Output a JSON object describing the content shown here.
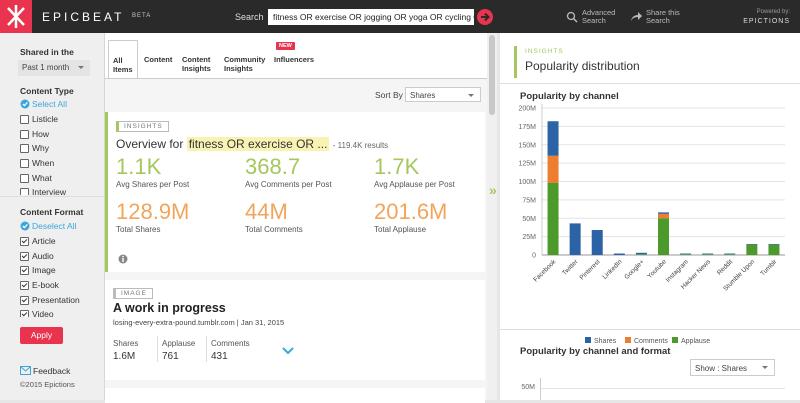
{
  "header": {
    "logo": "EPICBEAT",
    "beta": "BETA",
    "search_label": "Search",
    "search_query": "fitness OR exercise OR jogging OR yoga OR cycling OR w",
    "advanced_search": "Advanced Search",
    "share_search": "Share this Search",
    "powered_by": "Powered by:",
    "powered_brand": "EPICTIONS"
  },
  "sidebar": {
    "shared_in_label": "Shared in the",
    "shared_in_value": "Past 1 month",
    "content_type_label": "Content Type",
    "select_all": "Select All",
    "content_types": [
      {
        "label": "Listicle",
        "checked": false
      },
      {
        "label": "How",
        "checked": false
      },
      {
        "label": "Why",
        "checked": false
      },
      {
        "label": "When",
        "checked": false
      },
      {
        "label": "What",
        "checked": false
      },
      {
        "label": "Interview",
        "checked": false
      }
    ],
    "content_format_label": "Content Format",
    "deselect_all": "Deselect All",
    "content_formats": [
      {
        "label": "Article",
        "checked": true
      },
      {
        "label": "Audio",
        "checked": true
      },
      {
        "label": "Image",
        "checked": true
      },
      {
        "label": "E-book",
        "checked": true
      },
      {
        "label": "Presentation",
        "checked": true
      },
      {
        "label": "Video",
        "checked": true
      }
    ],
    "apply": "Apply",
    "feedback": "Feedback",
    "copyright": "©2015 Epictions"
  },
  "tabs": [
    {
      "label": "All Items",
      "selected": true
    },
    {
      "label": "Content",
      "selected": false
    },
    {
      "label": "Content Insights",
      "selected": false
    },
    {
      "label": "Community Insights",
      "selected": false
    },
    {
      "label": "Influencers",
      "selected": false,
      "badge": "NEW"
    }
  ],
  "sort": {
    "label": "Sort By",
    "value": "Shares"
  },
  "overview": {
    "tag": "INSIGHTS",
    "prefix": "Overview for",
    "query": "fitness OR exercise OR ...",
    "results": "- 119.4K results",
    "stats": [
      {
        "value": "1.1K",
        "label": "Avg Shares per Post"
      },
      {
        "value": "368.7",
        "label": "Avg Comments per Post"
      },
      {
        "value": "1.7K",
        "label": "Avg Applause per Post"
      },
      {
        "value": "128.9M",
        "label": "Total Shares"
      },
      {
        "value": "44M",
        "label": "Total Comments"
      },
      {
        "value": "201.6M",
        "label": "Total Applause"
      }
    ]
  },
  "item": {
    "tag": "IMAGE",
    "title": "A work in progress",
    "source": "losing-every-extra-pound.tumblr.com",
    "date": "Jan 31, 2015",
    "stats": [
      {
        "label": "Shares",
        "value": "1.6M"
      },
      {
        "label": "Applause",
        "value": "761"
      },
      {
        "label": "Comments",
        "value": "431"
      }
    ]
  },
  "distribution": {
    "tag": "INSIGHTS",
    "title": "Popularity distribution"
  },
  "chart_data": {
    "type": "bar",
    "stacked": true,
    "title": "Popularity by channel",
    "categories": [
      "Facebook",
      "Twitter",
      "Pinterest",
      "LinkedIn",
      "Google+",
      "Youtube",
      "Instagram",
      "Hacker News",
      "Reddit",
      "Stumble Upon",
      "Tumblr"
    ],
    "series": [
      {
        "name": "Shares",
        "color": "#2c62a6",
        "values": [
          47,
          43,
          34,
          2,
          2,
          2,
          1,
          1,
          1,
          1,
          1
        ]
      },
      {
        "name": "Comments",
        "color": "#ee7d2f",
        "values": [
          37,
          0,
          0,
          0,
          0,
          6,
          0,
          0,
          0,
          0,
          0
        ]
      },
      {
        "name": "Applause",
        "color": "#4b9a2b",
        "values": [
          98,
          0,
          0,
          0,
          1,
          50,
          1,
          1,
          1,
          14,
          14
        ]
      }
    ],
    "ylim": [
      0,
      200
    ],
    "yticks": [
      0,
      {
        "value": 25,
        "label": "25M"
      },
      {
        "value": 50,
        "label": "50M"
      },
      {
        "value": 75,
        "label": "75M"
      },
      {
        "value": 100,
        "label": "100M"
      },
      {
        "value": 125,
        "label": "125M"
      },
      {
        "value": 150,
        "label": "150M"
      },
      {
        "value": 175,
        "label": "175M"
      },
      {
        "value": 200,
        "label": "200M"
      }
    ],
    "grid": true
  },
  "channel_format": {
    "title": "Popularity by channel and format",
    "show": "Show : Shares",
    "visible_tick": "50M"
  }
}
